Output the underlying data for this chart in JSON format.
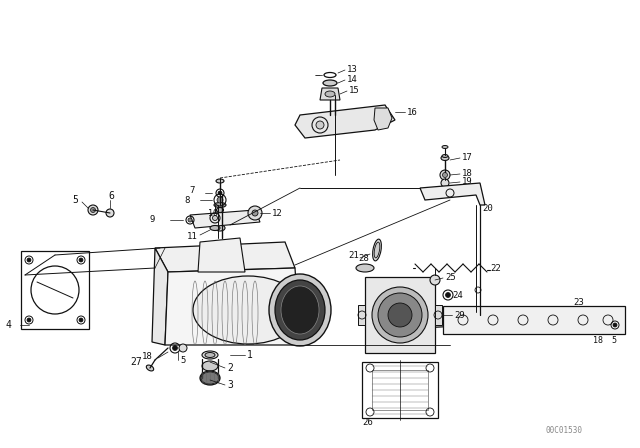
{
  "bg_color": "#ffffff",
  "part_number": "00C01530",
  "lw_thin": 0.6,
  "lw_med": 0.9,
  "lw_thick": 1.1,
  "dark": "#111111",
  "gray": "#666666",
  "lgray": "#aaaaaa"
}
